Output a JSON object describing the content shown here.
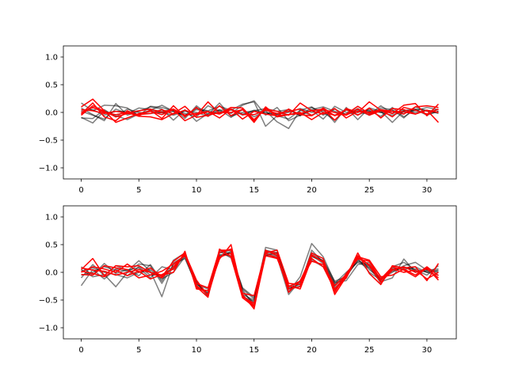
{
  "colors": {
    "gray": "#000000",
    "red": "#ff0000"
  },
  "chart_data": [
    {
      "type": "line",
      "xlim": [
        -1.55,
        32.55
      ],
      "ylim": [
        -1.2,
        1.2
      ],
      "xticks": [
        0,
        5,
        10,
        15,
        20,
        25,
        30
      ],
      "yticks": [
        -1.0,
        -0.5,
        0.0,
        0.5,
        1.0
      ],
      "ytick_labels": [
        "−1.0",
        "−0.5",
        "0.0",
        "0.5",
        "1.0"
      ],
      "x": [
        0,
        1,
        2,
        3,
        4,
        5,
        6,
        7,
        8,
        9,
        10,
        11,
        12,
        13,
        14,
        15,
        16,
        17,
        18,
        19,
        20,
        21,
        22,
        23,
        24,
        25,
        26,
        27,
        28,
        29,
        30,
        31
      ],
      "series": [
        {
          "color": "gray",
          "values": [
            0.17,
            0.03,
            0.13,
            0.12,
            0.08,
            -0.06,
            0.11,
            0.09,
            0.03,
            -0.02,
            -0.08,
            0.12,
            0.02,
            -0.02,
            0.13,
            0.21,
            -0.05,
            0.09,
            -0.15,
            -0.05,
            0.05,
            0.1,
            0.02,
            -0.03,
            0.07,
            -0.04,
            0.12,
            -0.02,
            0.04,
            0.03,
            0.09,
            0.05
          ]
        },
        {
          "color": "gray",
          "values": [
            -0.09,
            -0.19,
            0.03,
            -0.06,
            -0.13,
            -0.03,
            0.04,
            0.13,
            0.02,
            -0.05,
            0.07,
            0.03,
            0.11,
            0.04,
            0.15,
            0.19,
            -0.25,
            -0.06,
            -0.12,
            0.04,
            0.1,
            -0.05,
            0.06,
            -0.04,
            0.02,
            0.03,
            -0.07,
            0.09,
            -0.08,
            0.05,
            -0.03,
            0.02
          ]
        },
        {
          "color": "gray",
          "values": [
            0.08,
            -0.04,
            -0.15,
            0.16,
            -0.05,
            0.02,
            0.1,
            0.06,
            -0.14,
            0.05,
            -0.16,
            -0.02,
            0.05,
            -0.09,
            0.05,
            -0.08,
            0.03,
            -0.17,
            -0.29,
            0.04,
            -0.06,
            0.06,
            -0.18,
            0.09,
            -0.13,
            0.08,
            0.02,
            -0.18,
            0.03,
            0.06,
            0.04,
            -0.02
          ]
        },
        {
          "color": "gray",
          "values": [
            0.02,
            -0.05,
            -0.12,
            0.06,
            -0.02,
            0.08,
            0.05,
            0.02,
            0.06,
            -0.11,
            0.12,
            -0.04,
            0.17,
            -0.07,
            0.0,
            0.03,
            0.07,
            0.02,
            0.05,
            -0.06,
            0.04,
            -0.12,
            0.11,
            0.0,
            0.04,
            -0.05,
            0.08,
            0.05,
            -0.1,
            0.1,
            0.02,
            0.05
          ]
        },
        {
          "color": "gray",
          "values": [
            -0.1,
            -0.11,
            0.05,
            -0.08,
            0.06,
            0.0,
            -0.02,
            0.0,
            -0.05,
            0.02,
            0.0,
            -0.07,
            0.04,
            0.05,
            -0.03,
            0.02,
            -0.02,
            -0.03,
            0.0,
            0.07,
            0.0,
            0.03,
            -0.05,
            0.04,
            0.0,
            0.05,
            0.0,
            -0.05,
            0.02,
            0.0,
            0.03,
            0.0
          ]
        },
        {
          "color": "gray",
          "values": [
            0.04,
            0.05,
            -0.05,
            0.02,
            0.01,
            -0.04,
            0.03,
            -0.01,
            0.02,
            -0.06,
            0.05,
            0.02,
            -0.02,
            0.06,
            -0.05,
            0.04,
            0.0,
            -0.04,
            0.05,
            -0.06,
            0.09,
            0.0,
            -0.14,
            0.06,
            -0.04,
            0.02,
            0.0,
            0.03,
            -0.02,
            0.05,
            -0.05,
            0.02
          ]
        },
        {
          "color": "red",
          "values": [
            0.1,
            0.24,
            0.03,
            -0.18,
            -0.1,
            -0.02,
            0.02,
            -0.04,
            0.05,
            -0.15,
            -0.05,
            0.19,
            -0.02,
            0.09,
            0.08,
            -0.13,
            0.06,
            0.02,
            -0.05,
            0.17,
            0.03,
            0.06,
            -0.14,
            0.07,
            0.0,
            0.19,
            0.04,
            -0.02,
            0.13,
            0.16,
            -0.06,
            0.15
          ]
        },
        {
          "color": "red",
          "values": [
            -0.03,
            0.17,
            -0.08,
            -0.15,
            0.03,
            -0.06,
            0.04,
            -0.11,
            0.12,
            -0.08,
            0.09,
            -0.07,
            0.12,
            -0.06,
            0.06,
            -0.18,
            0.1,
            -0.07,
            0.06,
            -0.04,
            -0.06,
            0.08,
            -0.06,
            0.05,
            -0.05,
            0.08,
            -0.1,
            0.07,
            0.05,
            -0.03,
            0.04,
            -0.18
          ]
        },
        {
          "color": "red",
          "values": [
            0.05,
            0.03,
            -0.02,
            0.02,
            -0.01,
            0.03,
            0.06,
            0.0,
            0.06,
            -0.05,
            -0.02,
            0.02,
            -0.1,
            0.06,
            -0.12,
            0.02,
            -0.03,
            -0.06,
            -0.04,
            -0.02,
            0.03,
            -0.03,
            0.07,
            -0.1,
            0.02,
            0.0,
            0.05,
            0.02,
            -0.03,
            0.1,
            0.12,
            0.09
          ]
        },
        {
          "color": "red",
          "values": [
            0.0,
            0.09,
            0.0,
            -0.04,
            0.0,
            -0.07,
            -0.08,
            -0.13,
            -0.02,
            0.11,
            -0.09,
            -0.05,
            0.0,
            0.0,
            0.05,
            -0.15,
            0.08,
            -0.08,
            -0.04,
            0.0,
            -0.13,
            0.0,
            -0.05,
            -0.03,
            0.11,
            -0.02,
            0.04,
            -0.08,
            0.09,
            0.04,
            -0.03,
            0.06
          ]
        },
        {
          "color": "red",
          "values": [
            -0.05,
            0.12,
            0.02,
            -0.08,
            -0.02,
            -0.04,
            -0.02,
            0.05,
            -0.03,
            0.04,
            -0.04,
            0.01,
            -0.03,
            0.06,
            -0.04,
            -0.04,
            0.04,
            -0.02,
            0.02,
            0.06,
            -0.05,
            0.05,
            0.0,
            -0.05,
            0.06,
            -0.05,
            0.03,
            0.02,
            0.01,
            -0.03,
            0.04,
            0.0
          ]
        }
      ]
    },
    {
      "type": "line",
      "xlim": [
        -1.55,
        32.55
      ],
      "ylim": [
        -1.2,
        1.2
      ],
      "xticks": [
        0,
        5,
        10,
        15,
        20,
        25,
        30
      ],
      "yticks": [
        -1.0,
        -0.5,
        0.0,
        0.5,
        1.0
      ],
      "ytick_labels": [
        "−1.0",
        "−0.5",
        "0.0",
        "0.5",
        "1.0"
      ],
      "x": [
        0,
        1,
        2,
        3,
        4,
        5,
        6,
        7,
        8,
        9,
        10,
        11,
        12,
        13,
        14,
        15,
        16,
        17,
        18,
        19,
        20,
        21,
        22,
        23,
        24,
        25,
        26,
        27,
        28,
        29,
        30,
        31
      ],
      "series": [
        {
          "color": "gray",
          "values": [
            -0.24,
            0.05,
            -0.12,
            0.06,
            0.02,
            0.21,
            0.02,
            -0.44,
            0.17,
            0.3,
            -0.17,
            -0.44,
            0.4,
            0.33,
            -0.28,
            -0.45,
            0.4,
            0.35,
            -0.35,
            -0.08,
            0.52,
            0.28,
            -0.18,
            -0.15,
            0.14,
            0.18,
            -0.17,
            -0.1,
            0.24,
            0.0,
            0.04,
            0.06
          ]
        },
        {
          "color": "gray",
          "values": [
            0.1,
            -0.05,
            0.16,
            -0.02,
            0.05,
            -0.06,
            0.14,
            -0.16,
            0.22,
            0.35,
            -0.28,
            -0.36,
            0.26,
            0.38,
            -0.44,
            -0.52,
            0.45,
            0.4,
            -0.3,
            -0.25,
            0.4,
            0.18,
            -0.22,
            -0.05,
            0.25,
            0.0,
            -0.14,
            0.1,
            0.18,
            0.04,
            -0.05,
            0.12
          ]
        },
        {
          "color": "gray",
          "values": [
            -0.1,
            0.14,
            -0.06,
            0.12,
            0.04,
            0.08,
            -0.1,
            0.1,
            0.05,
            0.32,
            -0.2,
            -0.42,
            0.3,
            0.36,
            -0.32,
            -0.6,
            0.35,
            0.3,
            -0.25,
            -0.18,
            0.3,
            0.16,
            -0.25,
            -0.05,
            0.2,
            0.12,
            -0.2,
            0.08,
            0.05,
            0.1,
            0.0,
            -0.05
          ]
        },
        {
          "color": "gray",
          "values": [
            0.05,
            -0.08,
            -0.04,
            -0.26,
            0.0,
            0.15,
            0.12,
            -0.2,
            0.14,
            0.25,
            -0.22,
            -0.3,
            0.38,
            0.26,
            -0.4,
            -0.5,
            0.32,
            0.28,
            -0.4,
            -0.15,
            0.22,
            0.1,
            -0.28,
            -0.1,
            0.3,
            0.05,
            -0.12,
            0.0,
            0.12,
            0.18,
            0.04,
            0.02
          ]
        },
        {
          "color": "gray",
          "values": [
            0.02,
            0.08,
            0.0,
            -0.04,
            -0.1,
            0.0,
            0.05,
            -0.12,
            0.0,
            0.28,
            -0.25,
            -0.38,
            0.35,
            0.4,
            -0.36,
            -0.55,
            0.38,
            0.32,
            -0.3,
            -0.2,
            0.35,
            0.2,
            -0.2,
            0.0,
            0.18,
            0.08,
            -0.15,
            0.05,
            0.1,
            0.02,
            0.02,
            0.0
          ]
        },
        {
          "color": "gray",
          "values": [
            -0.05,
            0.0,
            0.1,
            0.04,
            -0.06,
            0.1,
            -0.05,
            -0.05,
            0.08,
            0.3,
            -0.18,
            -0.4,
            0.32,
            0.3,
            -0.3,
            -0.48,
            0.3,
            0.36,
            -0.28,
            -0.22,
            0.28,
            0.22,
            -0.16,
            -0.08,
            0.22,
            0.1,
            -0.1,
            0.02,
            0.08,
            0.06,
            0.0,
            0.04
          ]
        },
        {
          "color": "red",
          "values": [
            0.05,
            0.25,
            -0.06,
            0.12,
            0.1,
            0.12,
            0.0,
            -0.05,
            0.0,
            0.38,
            -0.3,
            -0.33,
            0.24,
            0.5,
            -0.4,
            -0.66,
            0.35,
            0.4,
            -0.2,
            -0.22,
            0.35,
            0.25,
            -0.4,
            -0.08,
            0.35,
            -0.02,
            -0.22,
            0.12,
            0.08,
            0.1,
            -0.15,
            0.16
          ]
        },
        {
          "color": "red",
          "values": [
            0.0,
            0.1,
            0.06,
            0.0,
            0.15,
            0.0,
            0.08,
            -0.08,
            0.2,
            0.35,
            -0.26,
            -0.45,
            0.42,
            0.28,
            -0.46,
            -0.62,
            0.3,
            0.25,
            -0.24,
            -0.3,
            0.25,
            0.1,
            -0.32,
            -0.1,
            0.3,
            0.12,
            -0.18,
            0.04,
            0.1,
            0.0,
            0.06,
            -0.1
          ]
        },
        {
          "color": "red",
          "values": [
            -0.04,
            -0.05,
            0.12,
            0.08,
            0.05,
            -0.1,
            -0.05,
            0.02,
            0.15,
            0.3,
            -0.2,
            -0.28,
            0.4,
            0.4,
            -0.38,
            -0.42,
            0.38,
            0.34,
            -0.36,
            -0.15,
            0.2,
            0.14,
            -0.24,
            -0.04,
            0.28,
            0.22,
            -0.08,
            -0.05,
            0.06,
            -0.05,
            0.1,
            -0.06
          ]
        },
        {
          "color": "red",
          "values": [
            0.08,
            0.04,
            0.02,
            -0.05,
            0.0,
            0.05,
            0.0,
            -0.1,
            0.1,
            0.33,
            -0.24,
            -0.4,
            0.36,
            0.42,
            -0.44,
            -0.56,
            0.4,
            0.3,
            -0.26,
            -0.16,
            0.3,
            0.2,
            -0.36,
            -0.02,
            0.24,
            0.2,
            -0.14,
            0.06,
            0.0,
            0.04,
            -0.12,
            0.0
          ]
        },
        {
          "color": "red",
          "values": [
            0.02,
            -0.02,
            -0.08,
            0.04,
            -0.06,
            0.02,
            -0.12,
            -0.04,
            0.06,
            0.34,
            -0.14,
            -0.42,
            0.28,
            0.34,
            -0.42,
            -0.6,
            0.34,
            0.26,
            -0.3,
            -0.26,
            0.32,
            0.18,
            -0.3,
            -0.06,
            0.26,
            0.14,
            -0.12,
            0.1,
            0.04,
            -0.08,
            0.08,
            -0.14
          ]
        }
      ]
    }
  ]
}
